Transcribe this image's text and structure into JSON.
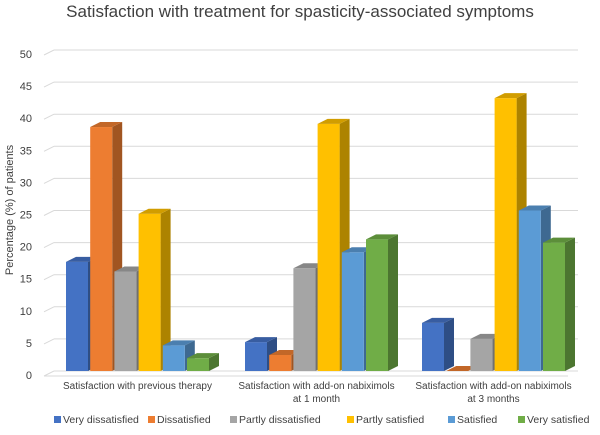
{
  "chart_data": {
    "type": "bar",
    "title": "Satisfaction with treatment for spasticity-associated symptoms",
    "xlabel": "",
    "ylabel": "Percentage (%) of patients",
    "ylim": [
      0,
      50
    ],
    "yticks": [
      0,
      5,
      10,
      15,
      20,
      25,
      30,
      35,
      40,
      45,
      50
    ],
    "grid": true,
    "legend_position": "bottom",
    "categories": [
      [
        "Satisfaction with previous therapy"
      ],
      [
        "Satisfaction with add-on nabiximols",
        "at 1 month"
      ],
      [
        "Satisfaction with add-on nabiximols",
        "at 3 months"
      ]
    ],
    "series": [
      {
        "name": "Very dissatisfied",
        "color": "#4472c4",
        "values": [
          17,
          4.5,
          7.5
        ]
      },
      {
        "name": "Dissatisfied",
        "color": "#ed7d31",
        "values": [
          38,
          2.5,
          0
        ]
      },
      {
        "name": "Partly dissatisfied",
        "color": "#a5a5a5",
        "values": [
          15.5,
          16,
          5
        ]
      },
      {
        "name": "Partly satisfied",
        "color": "#ffc000",
        "values": [
          24.5,
          38.5,
          42.5
        ]
      },
      {
        "name": "Satisfied",
        "color": "#5b9bd5",
        "values": [
          4,
          18.5,
          25
        ]
      },
      {
        "name": "Very satisfied",
        "color": "#70ad47",
        "values": [
          2,
          20.5,
          20
        ]
      }
    ]
  }
}
